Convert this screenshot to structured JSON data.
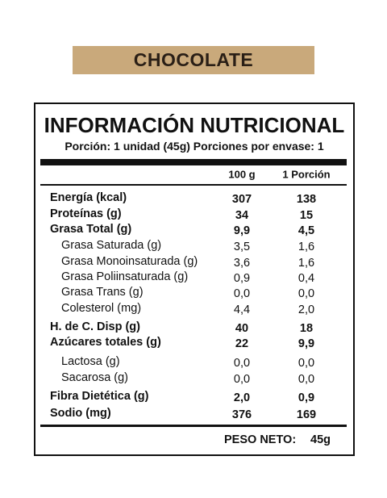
{
  "header": {
    "title": "CHOCOLATE"
  },
  "label": {
    "title": "INFORMACIÓN NUTRICIONAL",
    "portion": "Porción: 1 unidad (45g) Porciones por envase: 1",
    "columns": [
      "100 g",
      "1 Porción"
    ],
    "rows": [
      [
        "Energía (kcal)",
        "307",
        "138"
      ],
      [
        "Proteínas (g)",
        "34",
        "15"
      ],
      [
        "Grasa Total (g)",
        "9,9",
        "4,5"
      ],
      [
        "Grasa Saturada (g)",
        "3,5",
        "1,6"
      ],
      [
        "Grasa Monoinsaturada (g)",
        "3,6",
        "1,6"
      ],
      [
        "Grasa Poliinsaturada (g)",
        "0,9",
        "0,4"
      ],
      [
        "Grasa Trans (g)",
        "0,0",
        "0,0"
      ],
      [
        "Colesterol (mg)",
        "4,4",
        "2,0"
      ],
      [
        "H. de C. Disp (g)",
        "40",
        "18"
      ],
      [
        "Azúcares totales (g)",
        "22",
        "9,9"
      ],
      [
        "Lactosa (g)",
        "0,0",
        "0,0"
      ],
      [
        "Sacarosa (g)",
        "0,0",
        "0,0"
      ],
      [
        "Fibra Dietética (g)",
        "2,0",
        "0,9"
      ],
      [
        "Sodio (mg)",
        "376",
        "169"
      ]
    ],
    "net_weight": {
      "label": "PESO NETO:",
      "value": "45g"
    }
  }
}
